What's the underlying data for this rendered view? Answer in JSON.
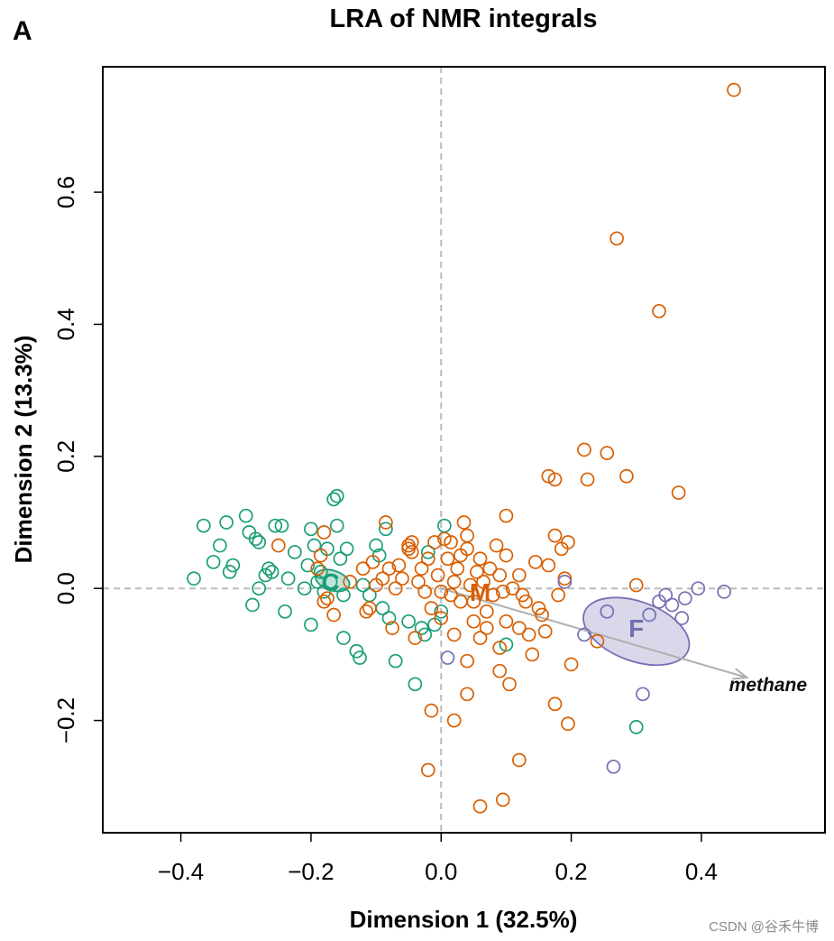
{
  "panel_letter": "A",
  "watermark": "CSDN @谷禾牛博",
  "chart_data": {
    "type": "scatter",
    "title": "LRA of NMR integrals",
    "xlabel": "Dimension 1 (32.5%)",
    "ylabel": "Dimension 2 (13.3%)",
    "xlim": [
      -0.52,
      0.59
    ],
    "ylim": [
      -0.37,
      0.79
    ],
    "xticks": [
      -0.4,
      -0.2,
      0.0,
      0.2,
      0.4
    ],
    "xtick_labels": [
      "−0.4",
      "−0.2",
      "0.0",
      "0.2",
      "0.4"
    ],
    "yticks": [
      -0.2,
      0.0,
      0.2,
      0.4,
      0.6
    ],
    "ytick_labels": [
      "−0.2",
      "0.0",
      "0.2",
      "0.4",
      "0.6"
    ],
    "reference_lines": {
      "x": 0,
      "y": 0,
      "style": "dashed",
      "color": "#bbbbbb"
    },
    "grid": false,
    "legend": "none",
    "series": [
      {
        "name": "C",
        "color": "#1b9e77",
        "centroid": [
          -0.17,
          0.01
        ],
        "ellipse": {
          "center": [
            -0.167,
            0.012
          ],
          "rx": 0.027,
          "ry": 0.015,
          "angle_deg": 18
        },
        "points": [
          [
            -0.38,
            0.015
          ],
          [
            -0.365,
            0.095
          ],
          [
            -0.35,
            0.04
          ],
          [
            -0.34,
            0.065
          ],
          [
            -0.33,
            0.1
          ],
          [
            -0.325,
            0.025
          ],
          [
            -0.32,
            0.035
          ],
          [
            -0.3,
            0.11
          ],
          [
            -0.295,
            0.085
          ],
          [
            -0.29,
            -0.025
          ],
          [
            -0.285,
            0.075
          ],
          [
            -0.28,
            0.07
          ],
          [
            -0.27,
            0.02
          ],
          [
            -0.265,
            0.03
          ],
          [
            -0.26,
            0.025
          ],
          [
            -0.255,
            0.095
          ],
          [
            -0.245,
            0.095
          ],
          [
            -0.24,
            -0.035
          ],
          [
            -0.235,
            0.015
          ],
          [
            -0.225,
            0.055
          ],
          [
            -0.21,
            0.0
          ],
          [
            -0.205,
            0.035
          ],
          [
            -0.2,
            0.09
          ],
          [
            -0.2,
            -0.055
          ],
          [
            -0.195,
            0.065
          ],
          [
            -0.19,
            0.01
          ],
          [
            -0.185,
            0.025
          ],
          [
            -0.18,
            -0.005
          ],
          [
            -0.175,
            0.06
          ],
          [
            -0.165,
            0.135
          ],
          [
            -0.16,
            0.14
          ],
          [
            -0.16,
            0.095
          ],
          [
            -0.155,
            0.045
          ],
          [
            -0.15,
            -0.01
          ],
          [
            -0.145,
            0.06
          ],
          [
            -0.15,
            -0.075
          ],
          [
            -0.13,
            -0.095
          ],
          [
            -0.125,
            -0.105
          ],
          [
            -0.12,
            0.005
          ],
          [
            -0.11,
            -0.01
          ],
          [
            -0.1,
            0.065
          ],
          [
            -0.095,
            0.05
          ],
          [
            -0.09,
            -0.03
          ],
          [
            -0.085,
            0.09
          ],
          [
            -0.08,
            -0.045
          ],
          [
            -0.07,
            -0.11
          ],
          [
            -0.05,
            -0.05
          ],
          [
            -0.04,
            -0.145
          ],
          [
            -0.03,
            -0.06
          ],
          [
            -0.025,
            -0.07
          ],
          [
            -0.02,
            0.055
          ],
          [
            -0.01,
            -0.055
          ],
          [
            0.0,
            -0.035
          ],
          [
            0.005,
            0.095
          ],
          [
            0.1,
            -0.085
          ],
          [
            0.3,
            -0.21
          ],
          [
            -0.17,
            0.01
          ],
          [
            -0.28,
            0.0
          ]
        ]
      },
      {
        "name": "M",
        "color": "#d95f02",
        "centroid": [
          0.06,
          -0.005
        ],
        "points": [
          [
            -0.25,
            0.065
          ],
          [
            -0.19,
            0.03
          ],
          [
            -0.185,
            0.05
          ],
          [
            -0.18,
            0.085
          ],
          [
            -0.18,
            -0.02
          ],
          [
            -0.175,
            -0.015
          ],
          [
            -0.165,
            -0.04
          ],
          [
            -0.14,
            0.01
          ],
          [
            -0.12,
            0.03
          ],
          [
            -0.11,
            -0.03
          ],
          [
            -0.105,
            0.04
          ],
          [
            -0.1,
            0.005
          ],
          [
            -0.09,
            0.015
          ],
          [
            -0.085,
            0.1
          ],
          [
            -0.08,
            0.03
          ],
          [
            -0.075,
            -0.06
          ],
          [
            -0.07,
            0.0
          ],
          [
            -0.065,
            0.035
          ],
          [
            -0.06,
            0.015
          ],
          [
            -0.05,
            0.065
          ],
          [
            -0.045,
            0.07
          ],
          [
            -0.045,
            0.055
          ],
          [
            -0.04,
            -0.075
          ],
          [
            -0.035,
            0.01
          ],
          [
            -0.03,
            0.03
          ],
          [
            -0.025,
            -0.005
          ],
          [
            -0.02,
            0.045
          ],
          [
            -0.015,
            -0.03
          ],
          [
            -0.01,
            0.07
          ],
          [
            -0.005,
            0.02
          ],
          [
            0.0,
            -0.005
          ],
          [
            0.0,
            -0.045
          ],
          [
            0.005,
            0.075
          ],
          [
            0.01,
            0.045
          ],
          [
            0.015,
            -0.01
          ],
          [
            0.02,
            0.01
          ],
          [
            0.02,
            -0.07
          ],
          [
            0.025,
            0.03
          ],
          [
            0.03,
            0.05
          ],
          [
            0.03,
            -0.02
          ],
          [
            0.035,
            0.1
          ],
          [
            0.04,
            0.08
          ],
          [
            0.04,
            0.06
          ],
          [
            0.045,
            0.005
          ],
          [
            0.05,
            -0.05
          ],
          [
            0.05,
            -0.02
          ],
          [
            0.055,
            0.025
          ],
          [
            0.06,
            -0.075
          ],
          [
            0.06,
            0.045
          ],
          [
            0.065,
            0.01
          ],
          [
            0.07,
            -0.035
          ],
          [
            0.075,
            0.03
          ],
          [
            0.08,
            -0.01
          ],
          [
            0.085,
            0.065
          ],
          [
            0.09,
            0.02
          ],
          [
            0.09,
            -0.09
          ],
          [
            0.095,
            -0.005
          ],
          [
            0.1,
            0.11
          ],
          [
            0.1,
            0.05
          ],
          [
            0.1,
            -0.05
          ],
          [
            0.105,
            -0.145
          ],
          [
            0.11,
            0.0
          ],
          [
            0.12,
            0.02
          ],
          [
            0.12,
            -0.06
          ],
          [
            0.125,
            -0.01
          ],
          [
            0.13,
            -0.02
          ],
          [
            0.135,
            -0.07
          ],
          [
            0.14,
            -0.1
          ],
          [
            0.145,
            0.04
          ],
          [
            0.15,
            -0.03
          ],
          [
            0.155,
            -0.04
          ],
          [
            0.16,
            -0.065
          ],
          [
            0.165,
            0.17
          ],
          [
            0.165,
            0.035
          ],
          [
            0.175,
            0.165
          ],
          [
            0.175,
            0.08
          ],
          [
            0.175,
            -0.175
          ],
          [
            0.18,
            -0.01
          ],
          [
            0.185,
            0.06
          ],
          [
            0.19,
            0.015
          ],
          [
            0.195,
            0.07
          ],
          [
            0.195,
            -0.205
          ],
          [
            0.2,
            -0.115
          ],
          [
            0.22,
            0.21
          ],
          [
            0.225,
            0.165
          ],
          [
            0.24,
            -0.08
          ],
          [
            0.255,
            0.205
          ],
          [
            0.285,
            0.17
          ],
          [
            0.3,
            0.005
          ],
          [
            0.365,
            0.145
          ],
          [
            0.27,
            0.53
          ],
          [
            0.335,
            0.42
          ],
          [
            0.45,
            0.755
          ],
          [
            -0.015,
            -0.185
          ],
          [
            -0.02,
            -0.275
          ],
          [
            0.02,
            -0.2
          ],
          [
            0.04,
            -0.16
          ],
          [
            0.06,
            -0.33
          ],
          [
            0.095,
            -0.32
          ],
          [
            0.12,
            -0.26
          ],
          [
            0.09,
            -0.125
          ],
          [
            0.04,
            -0.11
          ],
          [
            -0.05,
            0.06
          ],
          [
            -0.115,
            -0.035
          ],
          [
            0.015,
            0.07
          ],
          [
            0.07,
            -0.06
          ]
        ]
      },
      {
        "name": "F",
        "color": "#7570b3",
        "centroid": [
          0.3,
          -0.06
        ],
        "ellipse": {
          "center": [
            0.3,
            -0.065
          ],
          "rx": 0.085,
          "ry": 0.045,
          "angle_deg": 20
        },
        "points": [
          [
            0.01,
            -0.105
          ],
          [
            0.19,
            0.01
          ],
          [
            0.22,
            -0.07
          ],
          [
            0.255,
            -0.035
          ],
          [
            0.265,
            -0.27
          ],
          [
            0.31,
            -0.16
          ],
          [
            0.32,
            -0.04
          ],
          [
            0.335,
            -0.02
          ],
          [
            0.345,
            -0.01
          ],
          [
            0.355,
            -0.025
          ],
          [
            0.37,
            -0.045
          ],
          [
            0.375,
            -0.015
          ],
          [
            0.395,
            0.0
          ],
          [
            0.435,
            -0.005
          ]
        ]
      }
    ],
    "vector": {
      "label": "methane",
      "from": [
        0.0,
        0.0
      ],
      "to": [
        0.47,
        -0.135
      ],
      "color": "#b0b0b0"
    }
  }
}
